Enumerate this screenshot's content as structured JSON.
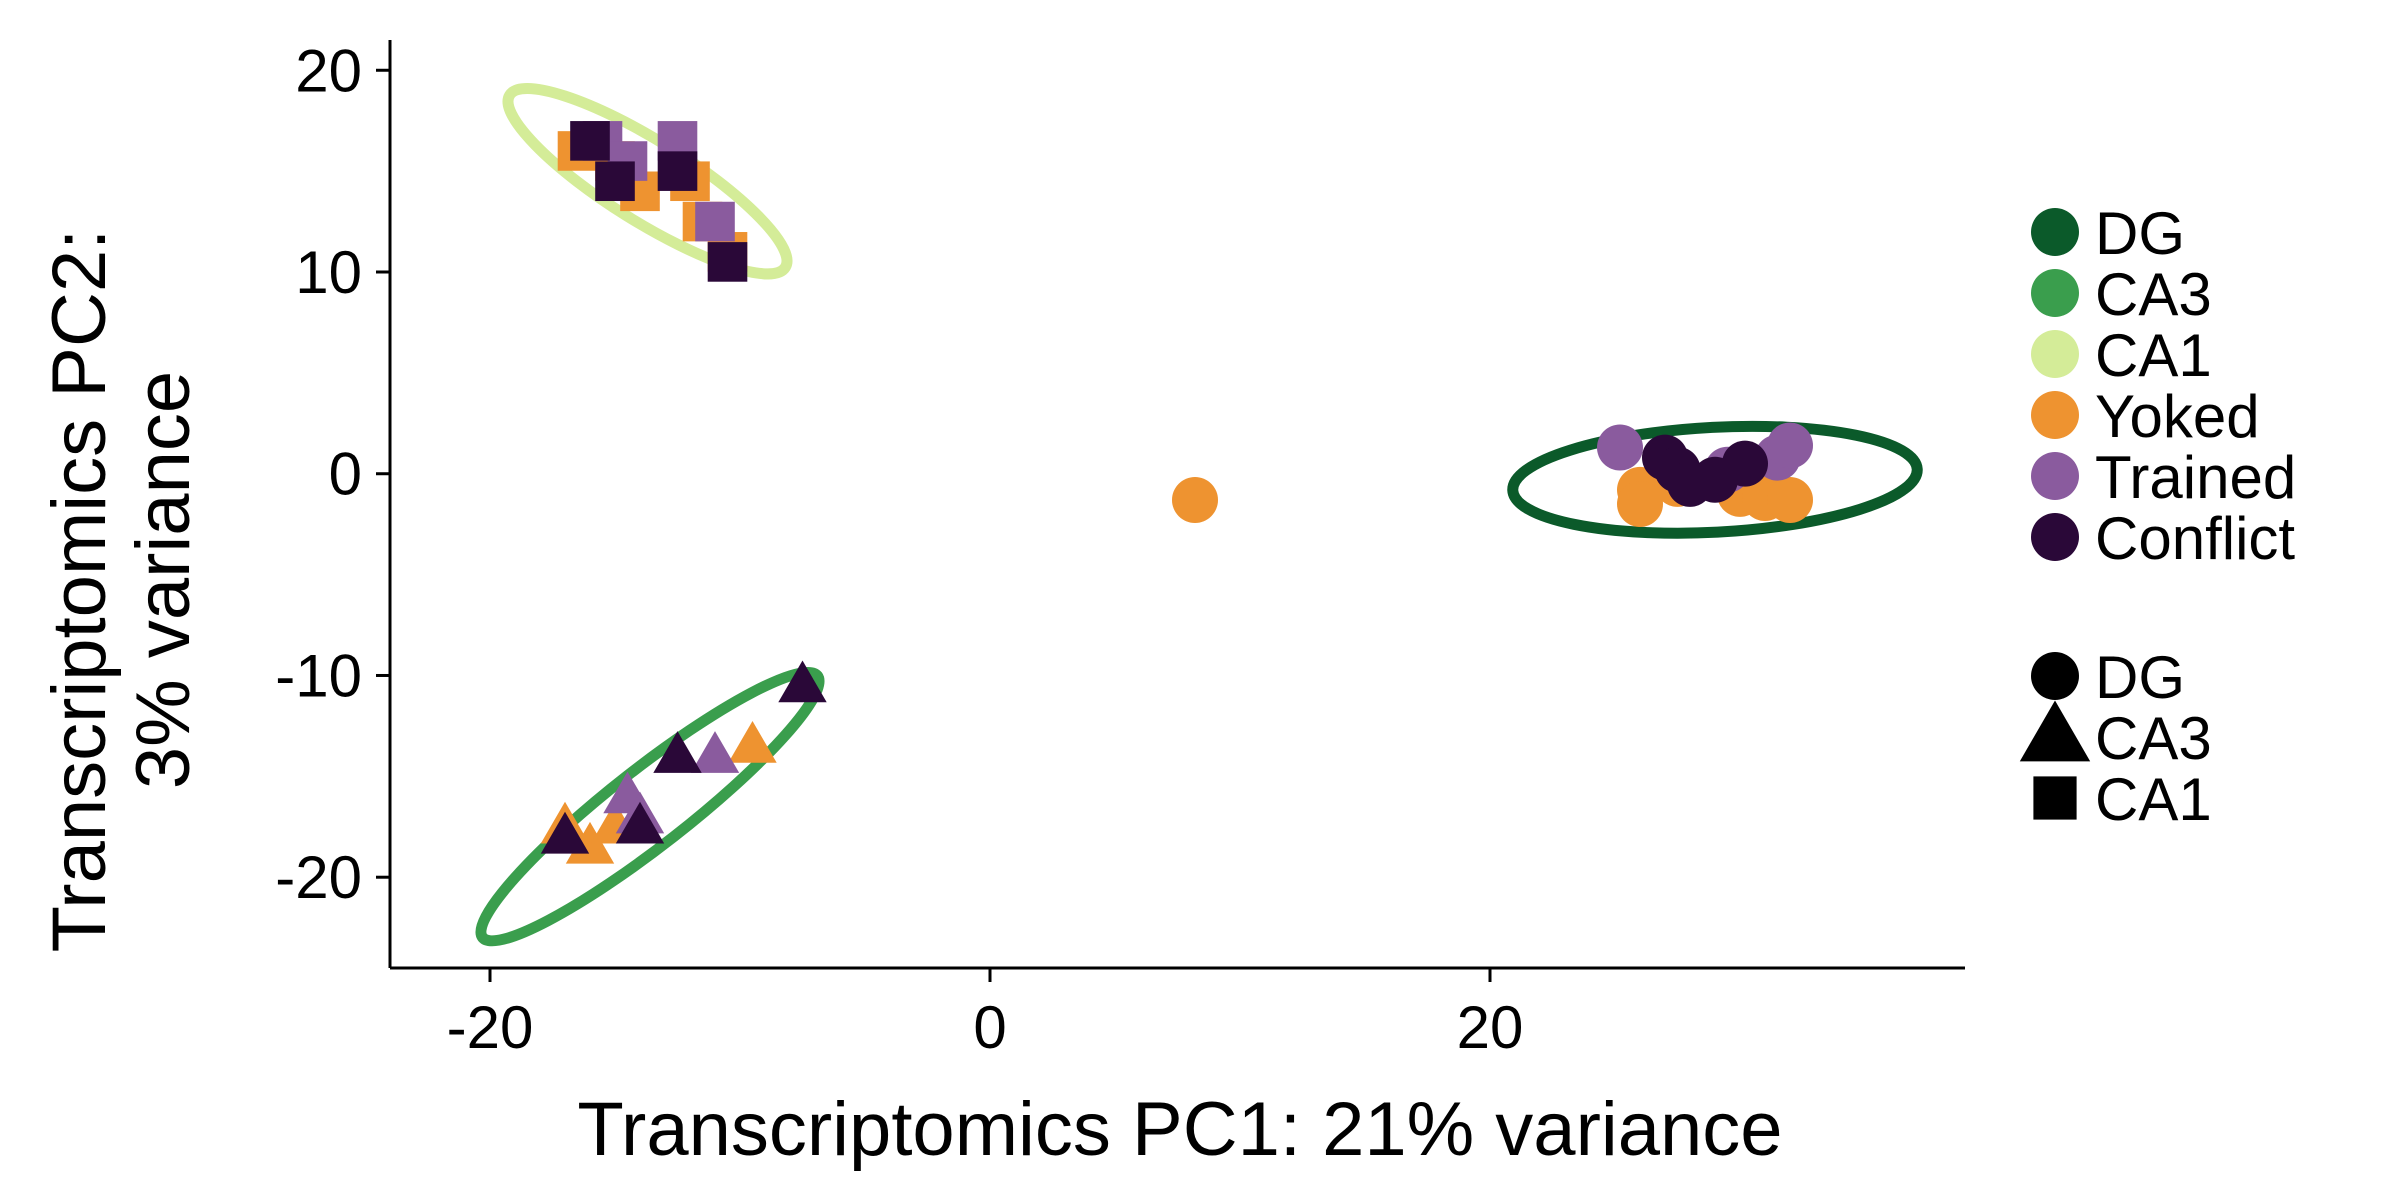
{
  "chart_data": {
    "type": "scatter",
    "xlabel": "Transcriptomics PC1: 21% variance",
    "ylabel_lines": [
      "Transcriptomics PC2:",
      "3% variance"
    ],
    "xlim": [
      -24,
      39
    ],
    "ylim": [
      -24.5,
      21.5
    ],
    "xticks": [
      -20,
      0,
      20
    ],
    "xtick_labels": [
      "-20",
      "0",
      "20"
    ],
    "yticks": [
      20,
      10,
      0,
      -10,
      -20
    ],
    "ytick_labels": [
      "20",
      "10",
      "0",
      "-10",
      "-20"
    ],
    "grid": false,
    "legend_position": "right",
    "subfield_legend": [
      {
        "label": "DG",
        "color": "#0b5a2a"
      },
      {
        "label": "CA3",
        "color": "#3a9e4d"
      },
      {
        "label": "CA1",
        "color": "#d4ec98"
      }
    ],
    "treatment_legend": [
      {
        "label": "Yoked",
        "color": "#ee9330"
      },
      {
        "label": "Trained",
        "color": "#8a5b9e"
      },
      {
        "label": "Conflict",
        "color": "#2a0838"
      }
    ],
    "shape_legend": [
      {
        "label": "DG",
        "shape": "circle"
      },
      {
        "label": "CA3",
        "shape": "triangle"
      },
      {
        "label": "CA1",
        "shape": "square"
      }
    ],
    "ellipses": [
      {
        "subfield": "CA1",
        "color": "#d4ec98",
        "cx": -13.7,
        "cy": 14.5,
        "rx": 6.5,
        "ry": 2.0,
        "angle_deg": -32
      },
      {
        "subfield": "CA3",
        "color": "#3a9e4d",
        "cx": -13.6,
        "cy": -16.5,
        "rx": 8.5,
        "ry": 1.9,
        "angle_deg": 38
      },
      {
        "subfield": "DG",
        "color": "#0b5a2a",
        "cx": 29.0,
        "cy": -0.3,
        "rx": 8.1,
        "ry": 2.6,
        "angle_deg": 3
      }
    ],
    "points": [
      {
        "x": -16.5,
        "y": 16.0,
        "subfield": "CA1",
        "treatment": "Yoked"
      },
      {
        "x": -15.0,
        "y": 15.5,
        "subfield": "CA1",
        "treatment": "Yoked"
      },
      {
        "x": -12.0,
        "y": 14.5,
        "subfield": "CA1",
        "treatment": "Yoked"
      },
      {
        "x": -11.5,
        "y": 12.5,
        "subfield": "CA1",
        "treatment": "Yoked"
      },
      {
        "x": -10.5,
        "y": 11.0,
        "subfield": "CA1",
        "treatment": "Yoked"
      },
      {
        "x": -14.0,
        "y": 14.0,
        "subfield": "CA1",
        "treatment": "Yoked"
      },
      {
        "x": -15.5,
        "y": 16.5,
        "subfield": "CA1",
        "treatment": "Trained"
      },
      {
        "x": -12.5,
        "y": 16.5,
        "subfield": "CA1",
        "treatment": "Trained"
      },
      {
        "x": -14.5,
        "y": 15.5,
        "subfield": "CA1",
        "treatment": "Trained"
      },
      {
        "x": -11.0,
        "y": 12.5,
        "subfield": "CA1",
        "treatment": "Trained"
      },
      {
        "x": -16.0,
        "y": 16.5,
        "subfield": "CA1",
        "treatment": "Conflict"
      },
      {
        "x": -15.0,
        "y": 14.5,
        "subfield": "CA1",
        "treatment": "Conflict"
      },
      {
        "x": -12.5,
        "y": 15.0,
        "subfield": "CA1",
        "treatment": "Conflict"
      },
      {
        "x": -10.5,
        "y": 10.5,
        "subfield": "CA1",
        "treatment": "Conflict"
      },
      {
        "x": -17.0,
        "y": -17.5,
        "subfield": "CA3",
        "treatment": "Yoked"
      },
      {
        "x": -16.0,
        "y": -18.5,
        "subfield": "CA3",
        "treatment": "Yoked"
      },
      {
        "x": -15.0,
        "y": -17.5,
        "subfield": "CA3",
        "treatment": "Yoked"
      },
      {
        "x": -9.5,
        "y": -13.5,
        "subfield": "CA3",
        "treatment": "Yoked"
      },
      {
        "x": -14.5,
        "y": -16.0,
        "subfield": "CA3",
        "treatment": "Trained"
      },
      {
        "x": -14.0,
        "y": -17.0,
        "subfield": "CA3",
        "treatment": "Trained"
      },
      {
        "x": -11.0,
        "y": -14.0,
        "subfield": "CA3",
        "treatment": "Trained"
      },
      {
        "x": -17.0,
        "y": -18.0,
        "subfield": "CA3",
        "treatment": "Conflict"
      },
      {
        "x": -14.0,
        "y": -17.5,
        "subfield": "CA3",
        "treatment": "Conflict"
      },
      {
        "x": -12.5,
        "y": -14.0,
        "subfield": "CA3",
        "treatment": "Conflict"
      },
      {
        "x": -7.5,
        "y": -10.5,
        "subfield": "CA3",
        "treatment": "Conflict"
      },
      {
        "x": 8.2,
        "y": -1.3,
        "subfield": "DG",
        "treatment": "Yoked"
      },
      {
        "x": 26.0,
        "y": -0.8,
        "subfield": "DG",
        "treatment": "Yoked"
      },
      {
        "x": 26.0,
        "y": -1.5,
        "subfield": "DG",
        "treatment": "Yoked"
      },
      {
        "x": 27.5,
        "y": -0.5,
        "subfield": "DG",
        "treatment": "Yoked"
      },
      {
        "x": 30.0,
        "y": -1.0,
        "subfield": "DG",
        "treatment": "Yoked"
      },
      {
        "x": 31.0,
        "y": -1.2,
        "subfield": "DG",
        "treatment": "Yoked"
      },
      {
        "x": 32.0,
        "y": -1.3,
        "subfield": "DG",
        "treatment": "Yoked"
      },
      {
        "x": 25.2,
        "y": 1.3,
        "subfield": "DG",
        "treatment": "Trained"
      },
      {
        "x": 29.5,
        "y": 0.2,
        "subfield": "DG",
        "treatment": "Trained"
      },
      {
        "x": 31.5,
        "y": 0.8,
        "subfield": "DG",
        "treatment": "Trained"
      },
      {
        "x": 32.0,
        "y": 1.4,
        "subfield": "DG",
        "treatment": "Trained"
      },
      {
        "x": 27.0,
        "y": 0.8,
        "subfield": "DG",
        "treatment": "Conflict"
      },
      {
        "x": 27.5,
        "y": 0.2,
        "subfield": "DG",
        "treatment": "Conflict"
      },
      {
        "x": 28.0,
        "y": -0.5,
        "subfield": "DG",
        "treatment": "Conflict"
      },
      {
        "x": 29.0,
        "y": -0.3,
        "subfield": "DG",
        "treatment": "Conflict"
      },
      {
        "x": 30.2,
        "y": 0.5,
        "subfield": "DG",
        "treatment": "Conflict"
      }
    ]
  }
}
